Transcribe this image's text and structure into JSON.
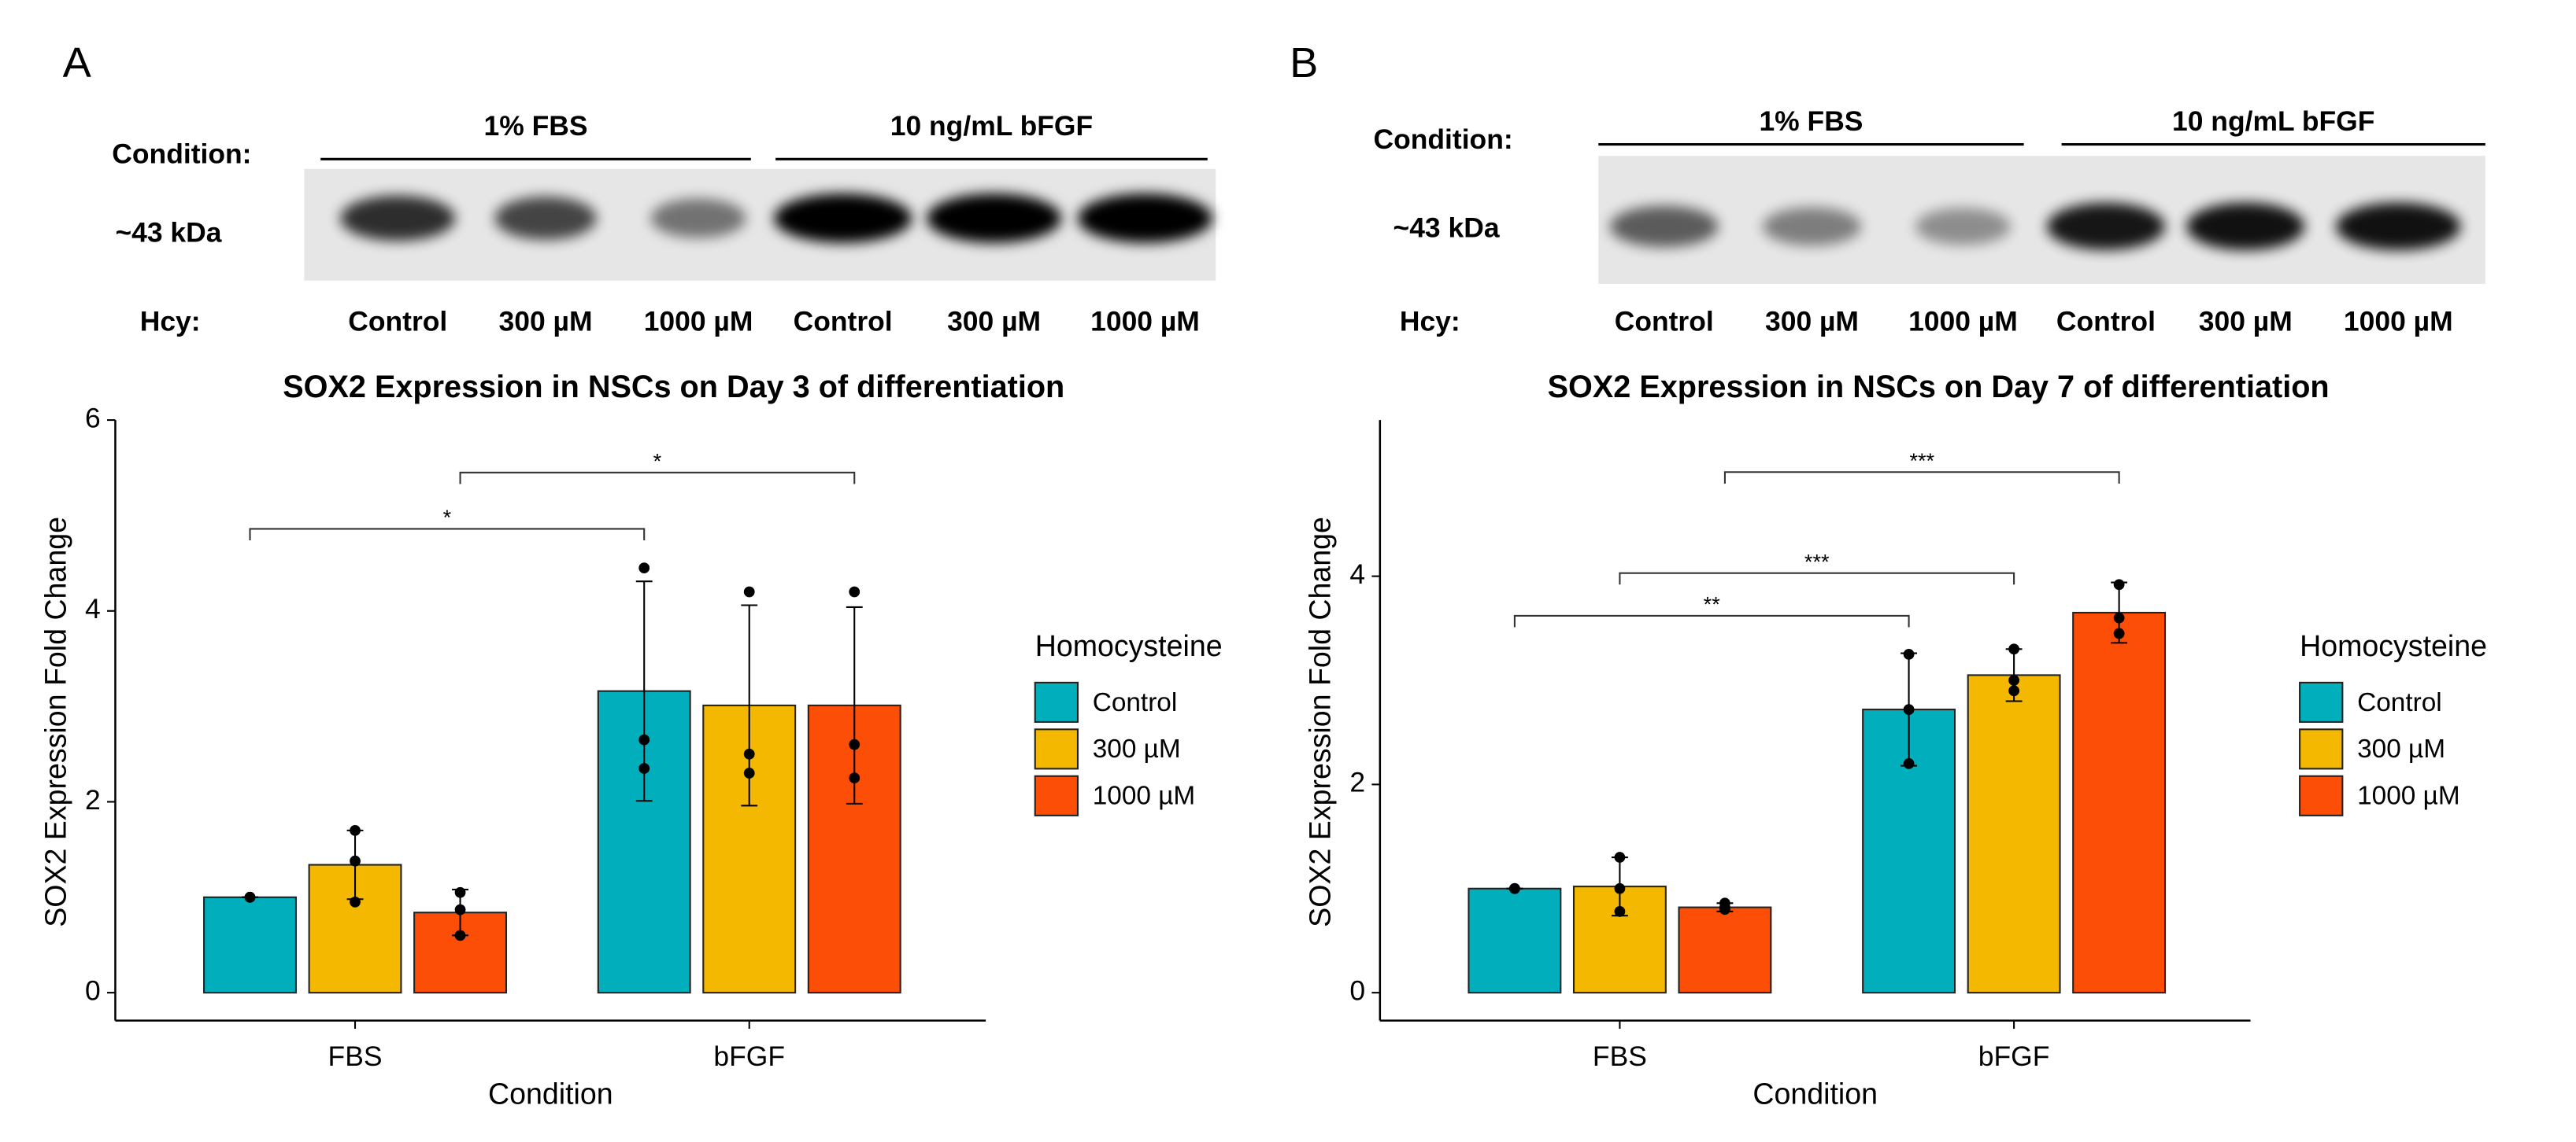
{
  "chart_data": [
    {
      "type": "bar",
      "panel": "A",
      "blot": {
        "condition_label": "Condition:",
        "groups": [
          "1% FBS",
          "10 ng/mL bFGF"
        ],
        "size_label": "~43 kDa",
        "lane_label": "Hcy:",
        "lanes": [
          "Control",
          "300 µM",
          "1000 µM",
          "Control",
          "300 µM",
          "1000 µM"
        ]
      },
      "title": "SOX2 Expression in NSCs on Day 3 of differentiation",
      "xlabel": "Condition",
      "ylabel": "SOX2 Expression Fold Change",
      "categories": [
        "FBS",
        "bFGF"
      ],
      "ylim": [
        0,
        6
      ],
      "yticks": [
        0,
        2,
        4,
        6
      ],
      "legend_title": "Homocysteine",
      "series": [
        {
          "name": "Control",
          "color": "#00AFBB",
          "values": [
            1.0,
            3.16
          ],
          "errors": [
            0,
            1.15
          ],
          "points": [
            [
              1.0,
              1.0,
              1.0
            ],
            [
              4.45,
              2.65,
              2.35
            ]
          ]
        },
        {
          "name": "300 µM",
          "color": "#F5B800",
          "values": [
            1.34,
            3.01
          ],
          "errors": [
            0.36,
            1.05
          ],
          "points": [
            [
              1.7,
              1.38,
              0.95
            ],
            [
              4.2,
              2.5,
              2.3
            ]
          ]
        },
        {
          "name": "1000 µM",
          "color": "#FC4E07",
          "values": [
            0.84,
            3.01
          ],
          "errors": [
            0.24,
            1.03
          ],
          "points": [
            [
              1.05,
              0.87,
              0.6
            ],
            [
              4.2,
              2.6,
              2.25
            ]
          ]
        }
      ],
      "significance": [
        {
          "from": [
            0,
            0
          ],
          "to": [
            1,
            0
          ],
          "y": 4.86,
          "label": "*"
        },
        {
          "from": [
            0,
            2
          ],
          "to": [
            1,
            2
          ],
          "y": 5.45,
          "label": "*"
        }
      ]
    },
    {
      "type": "bar",
      "panel": "B",
      "blot": {
        "condition_label": "Condition:",
        "groups": [
          "1% FBS",
          "10 ng/mL bFGF"
        ],
        "size_label": "~43 kDa",
        "lane_label": "Hcy:",
        "lanes": [
          "Control",
          "300 µM",
          "1000 µM",
          "Control",
          "300 µM",
          "1000 µM"
        ]
      },
      "title": "SOX2 Expression in NSCs on Day 7 of differentiation",
      "xlabel": "Condition",
      "ylabel": "SOX2 Expression Fold Change",
      "categories": [
        "FBS",
        "bFGF"
      ],
      "ylim": [
        0,
        5.5
      ],
      "yticks": [
        0,
        2,
        4
      ],
      "legend_title": "Homocysteine",
      "series": [
        {
          "name": "Control",
          "color": "#00AFBB",
          "values": [
            1.0,
            2.72
          ],
          "errors": [
            0,
            0.54
          ],
          "points": [
            [
              1.0,
              1.0,
              1.0
            ],
            [
              3.25,
              2.72,
              2.2
            ]
          ]
        },
        {
          "name": "300 µM",
          "color": "#F5B800",
          "values": [
            1.02,
            3.05
          ],
          "errors": [
            0.28,
            0.25
          ],
          "points": [
            [
              1.3,
              1.0,
              0.78
            ],
            [
              3.3,
              3.0,
              2.9
            ]
          ]
        },
        {
          "name": "1000 µM",
          "color": "#FC4E07",
          "values": [
            0.82,
            3.65
          ],
          "errors": [
            0.04,
            0.29
          ],
          "points": [
            [
              0.86,
              0.82,
              0.8
            ],
            [
              3.92,
              3.6,
              3.45
            ]
          ]
        }
      ],
      "significance": [
        {
          "from": [
            0,
            0
          ],
          "to": [
            1,
            0
          ],
          "y": 3.62,
          "label": "**"
        },
        {
          "from": [
            0,
            1
          ],
          "to": [
            1,
            1
          ],
          "y": 4.03,
          "label": "***"
        },
        {
          "from": [
            0,
            2
          ],
          "to": [
            1,
            2
          ],
          "y": 5.0,
          "label": "***"
        }
      ]
    }
  ]
}
